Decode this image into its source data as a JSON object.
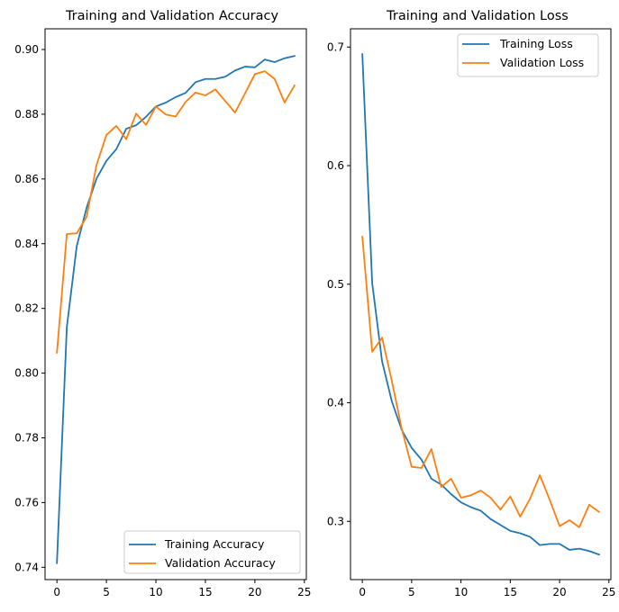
{
  "chart_data": [
    {
      "type": "line",
      "title": "Training and Validation Accuracy",
      "xlabel": "",
      "ylabel": "",
      "xlim": [
        -1.2,
        25.2
      ],
      "ylim": [
        0.7362,
        0.9064
      ],
      "xticks": [
        0,
        5,
        10,
        15,
        20,
        25
      ],
      "xtick_labels": [
        "0",
        "5",
        "10",
        "15",
        "20",
        "25"
      ],
      "yticks": [
        0.74,
        0.76,
        0.78,
        0.8,
        0.82,
        0.84,
        0.86,
        0.88,
        0.9
      ],
      "ytick_labels": [
        "0.74",
        "0.76",
        "0.78",
        "0.80",
        "0.82",
        "0.84",
        "0.86",
        "0.88",
        "0.90"
      ],
      "grid": false,
      "legend_position": "lower-right",
      "x": [
        0,
        1,
        2,
        3,
        4,
        5,
        6,
        7,
        8,
        9,
        10,
        11,
        12,
        13,
        14,
        15,
        16,
        17,
        18,
        19,
        20,
        21,
        22,
        23,
        24
      ],
      "series": [
        {
          "name": "Training Accuracy",
          "color": "#1f77b4",
          "values": [
            0.7413,
            0.8142,
            0.8392,
            0.8511,
            0.8601,
            0.8656,
            0.8692,
            0.8755,
            0.8766,
            0.8792,
            0.8824,
            0.8836,
            0.8853,
            0.8866,
            0.8899,
            0.8909,
            0.8909,
            0.8916,
            0.8935,
            0.8947,
            0.8945,
            0.8969,
            0.8961,
            0.8973,
            0.898
          ]
        },
        {
          "name": "Validation Accuracy",
          "color": "#ff7f0e",
          "values": [
            0.8063,
            0.843,
            0.8432,
            0.8483,
            0.8643,
            0.8736,
            0.8764,
            0.8723,
            0.8802,
            0.8767,
            0.8824,
            0.8799,
            0.8793,
            0.8838,
            0.8867,
            0.8858,
            0.8877,
            0.8841,
            0.8805,
            0.8864,
            0.8924,
            0.8933,
            0.8909,
            0.8836,
            0.8889
          ]
        }
      ]
    },
    {
      "type": "line",
      "title": "Training and Validation Loss",
      "xlabel": "",
      "ylabel": "",
      "xlim": [
        -1.2,
        25.2
      ],
      "ylim": [
        0.2509,
        0.7154
      ],
      "xticks": [
        0,
        5,
        10,
        15,
        20,
        25
      ],
      "xtick_labels": [
        "0",
        "5",
        "10",
        "15",
        "20",
        "25"
      ],
      "yticks": [
        0.3,
        0.4,
        0.5,
        0.6,
        0.7
      ],
      "ytick_labels": [
        "0.3",
        "0.4",
        "0.5",
        "0.6",
        "0.7"
      ],
      "grid": false,
      "legend_position": "top-right",
      "x": [
        0,
        1,
        2,
        3,
        4,
        5,
        6,
        7,
        8,
        9,
        10,
        11,
        12,
        13,
        14,
        15,
        16,
        17,
        18,
        19,
        20,
        21,
        22,
        23,
        24
      ],
      "series": [
        {
          "name": "Training Loss",
          "color": "#1f77b4",
          "values": [
            0.694,
            0.501,
            0.435,
            0.401,
            0.377,
            0.362,
            0.352,
            0.336,
            0.331,
            0.323,
            0.316,
            0.312,
            0.309,
            0.302,
            0.297,
            0.292,
            0.29,
            0.287,
            0.28,
            0.281,
            0.281,
            0.276,
            0.277,
            0.275,
            0.272
          ]
        },
        {
          "name": "Validation Loss",
          "color": "#ff7f0e",
          "values": [
            0.54,
            0.443,
            0.455,
            0.418,
            0.378,
            0.346,
            0.345,
            0.361,
            0.329,
            0.336,
            0.32,
            0.322,
            0.326,
            0.32,
            0.31,
            0.321,
            0.304,
            0.319,
            0.339,
            0.318,
            0.296,
            0.301,
            0.295,
            0.314,
            0.308
          ]
        }
      ]
    }
  ]
}
